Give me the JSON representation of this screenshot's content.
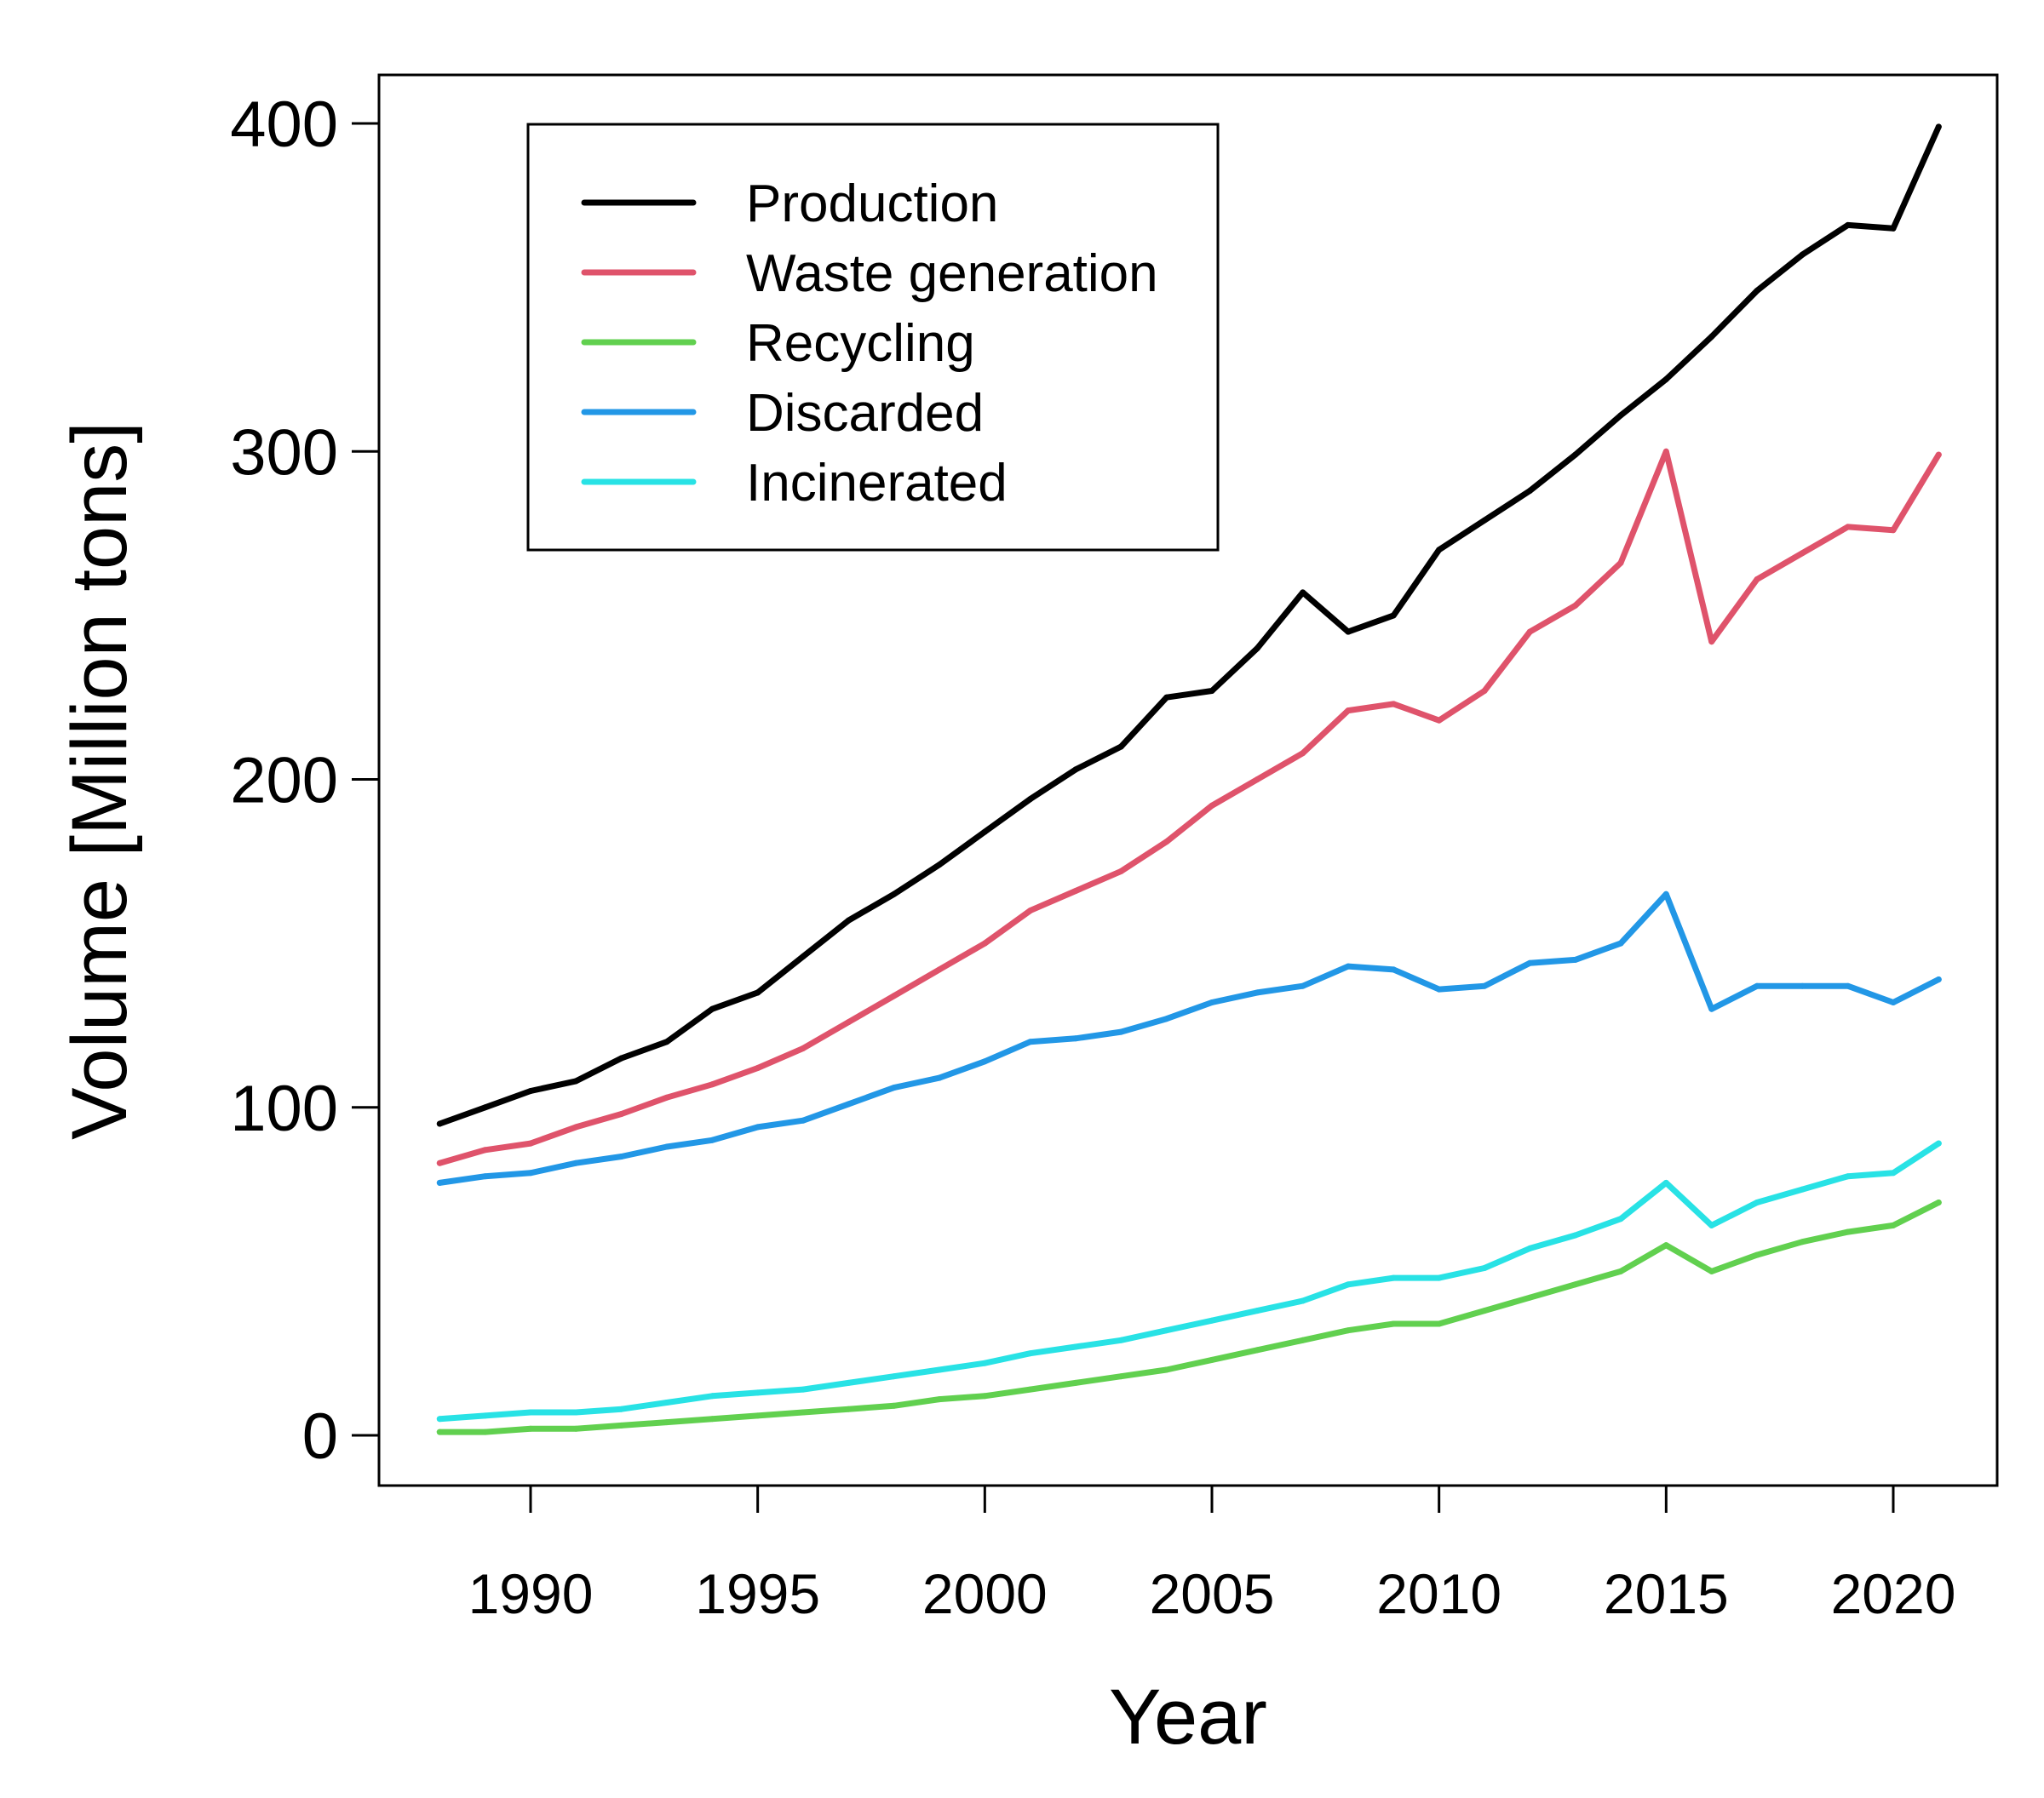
{
  "chart_data": {
    "type": "line",
    "xlabel": "Year",
    "ylabel": "Volume [Million tons]",
    "xlim": [
      1987.9,
      2021.3
    ],
    "ylim": [
      0,
      400
    ],
    "x_ticks": [
      1990,
      1995,
      2000,
      2005,
      2010,
      2015,
      2020
    ],
    "y_ticks": [
      0,
      100,
      200,
      300,
      400
    ],
    "x_tick_labels": [
      "1990",
      "1995",
      "2000",
      "2005",
      "2010",
      "2015",
      "2020"
    ],
    "y_tick_labels": [
      "0",
      "100",
      "200",
      "300",
      "400"
    ],
    "grid": false,
    "legend_position": "top-left",
    "x": [
      1988,
      1989,
      1990,
      1991,
      1992,
      1993,
      1994,
      1995,
      1996,
      1997,
      1998,
      1999,
      2000,
      2001,
      2002,
      2003,
      2004,
      2005,
      2006,
      2007,
      2008,
      2009,
      2010,
      2011,
      2012,
      2013,
      2014,
      2015,
      2016,
      2017,
      2018,
      2019,
      2020,
      2021
    ],
    "series": [
      {
        "name": "Production",
        "color": "#000000",
        "values": [
          95,
          100,
          105,
          108,
          115,
          120,
          130,
          135,
          146,
          157,
          165,
          174,
          184,
          194,
          203,
          210,
          225,
          227,
          240,
          257,
          245,
          250,
          270,
          279,
          288,
          299,
          311,
          322,
          335,
          349,
          360,
          369,
          368,
          399
        ]
      },
      {
        "name": "Waste generation",
        "color": "#DF536B",
        "values": [
          83,
          87,
          89,
          94,
          98,
          103,
          107,
          112,
          118,
          126,
          134,
          142,
          150,
          160,
          166,
          172,
          181,
          192,
          200,
          208,
          221,
          223,
          218,
          227,
          245,
          253,
          266,
          300,
          242,
          261,
          269,
          277,
          276,
          299
        ]
      },
      {
        "name": "Recycling",
        "color": "#61D04F",
        "values": [
          1,
          1,
          2,
          2,
          3,
          4,
          5,
          6,
          7,
          8,
          9,
          11,
          12,
          14,
          16,
          18,
          20,
          23,
          26,
          29,
          32,
          34,
          34,
          38,
          42,
          46,
          50,
          58,
          50,
          55,
          59,
          62,
          64,
          71
        ]
      },
      {
        "name": "Discarded",
        "color": "#2297E6",
        "values": [
          77,
          79,
          80,
          83,
          85,
          88,
          90,
          94,
          96,
          101,
          106,
          109,
          114,
          120,
          121,
          123,
          127,
          132,
          135,
          137,
          143,
          142,
          136,
          137,
          144,
          145,
          150,
          165,
          130,
          137,
          137,
          137,
          132,
          139
        ]
      },
      {
        "name": "Incinerated",
        "color": "#28E2E5",
        "values": [
          5,
          6,
          7,
          7,
          8,
          10,
          12,
          13,
          14,
          16,
          18,
          20,
          22,
          25,
          27,
          29,
          32,
          35,
          38,
          41,
          46,
          48,
          48,
          51,
          57,
          61,
          66,
          77,
          64,
          71,
          75,
          79,
          80,
          89
        ]
      }
    ]
  }
}
